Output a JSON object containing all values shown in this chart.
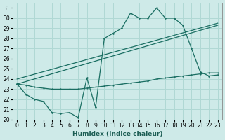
{
  "xlabel": "Humidex (Indice chaleur)",
  "bg_color": "#ceeae8",
  "grid_color": "#b0d8d4",
  "line_color": "#1a6e62",
  "xlim": [
    -0.5,
    23.5
  ],
  "ylim": [
    20,
    31.5
  ],
  "xticks": [
    0,
    1,
    2,
    3,
    4,
    5,
    6,
    7,
    8,
    9,
    10,
    11,
    12,
    13,
    14,
    15,
    16,
    17,
    18,
    19,
    20,
    21,
    22,
    23
  ],
  "yticks": [
    20,
    21,
    22,
    23,
    24,
    25,
    26,
    27,
    28,
    29,
    30,
    31
  ],
  "line1_x": [
    0,
    1,
    2,
    3,
    4,
    5,
    6,
    7,
    8,
    9,
    10,
    11,
    12,
    13,
    14,
    15,
    16,
    17,
    18,
    19,
    20,
    21,
    22,
    23
  ],
  "line1_y": [
    23.5,
    22.5,
    22.0,
    21.8,
    20.7,
    20.6,
    20.7,
    20.2,
    24.1,
    21.2,
    28.0,
    28.5,
    29.0,
    30.5,
    30.0,
    30.0,
    31.0,
    30.0,
    30.0,
    29.3,
    27.0,
    24.7,
    24.3,
    24.4
  ],
  "line2_x": [
    0,
    23
  ],
  "line2_y": [
    23.5,
    29.3
  ],
  "line3_x": [
    0,
    23
  ],
  "line3_y": [
    24.0,
    29.5
  ],
  "line4_x": [
    0,
    1,
    2,
    3,
    4,
    5,
    6,
    7,
    8,
    9,
    10,
    11,
    12,
    13,
    14,
    15,
    16,
    17,
    18,
    19,
    20,
    21,
    22,
    23
  ],
  "line4_y": [
    23.5,
    23.4,
    23.2,
    23.1,
    23.0,
    23.0,
    23.0,
    23.0,
    23.1,
    23.2,
    23.3,
    23.4,
    23.5,
    23.6,
    23.7,
    23.8,
    24.0,
    24.1,
    24.2,
    24.3,
    24.4,
    24.5,
    24.6,
    24.6
  ]
}
